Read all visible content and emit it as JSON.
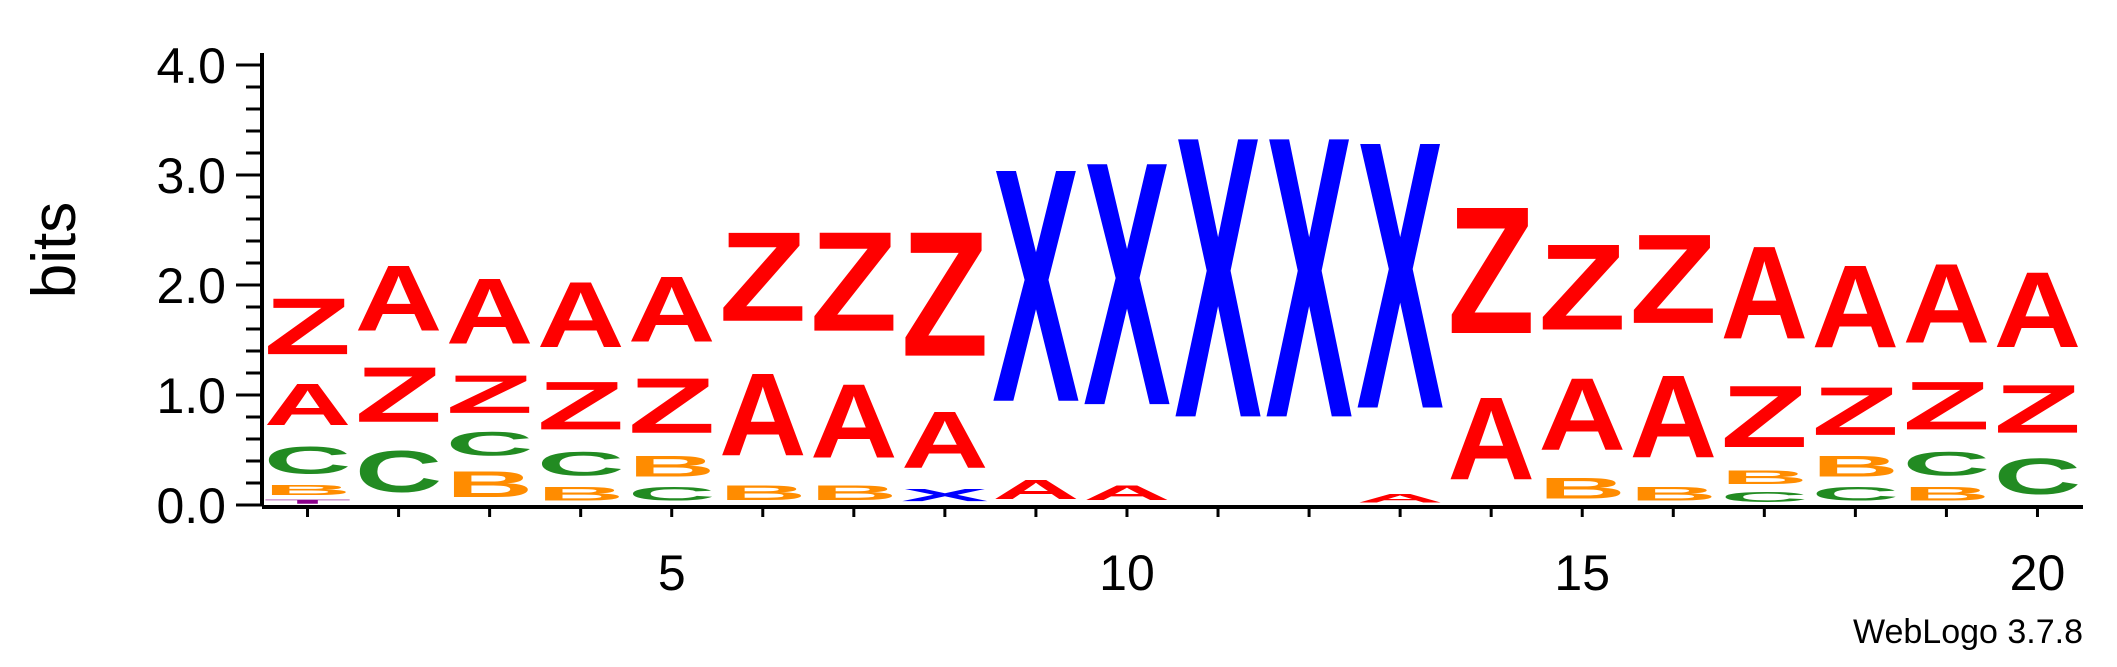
{
  "chart_data": {
    "type": "sequence-logo",
    "ylabel": "bits",
    "ylim": [
      0,
      4.0
    ],
    "y_ticks": [
      0.0,
      1.0,
      2.0,
      3.0,
      4.0
    ],
    "y_tick_labels": [
      "0.0",
      "1.0",
      "2.0",
      "3.0",
      "4.0"
    ],
    "x_ticks": [
      5,
      10,
      15,
      20
    ],
    "x_tick_labels": [
      "5",
      "10",
      "15",
      "20"
    ],
    "x_range": [
      0.5,
      20.5
    ],
    "footer": "WebLogo 3.7.8",
    "colors": {
      "A": "#ff0000",
      "Z": "#ff0000",
      "X": "#0000ff",
      "C": "#228b22",
      "B": "#ff8c00",
      "T": "#8b008b"
    },
    "positions": [
      {
        "pos": 1,
        "stack": [
          [
            "T",
            0.06
          ],
          [
            "B",
            0.15
          ],
          [
            "C",
            0.4
          ],
          [
            "A",
            0.6
          ],
          [
            "Z",
            0.82
          ]
        ]
      },
      {
        "pos": 2,
        "stack": [
          [
            "C",
            0.6
          ],
          [
            "Z",
            0.8
          ],
          [
            "A",
            0.95
          ]
        ]
      },
      {
        "pos": 3,
        "stack": [
          [
            "B",
            0.38
          ],
          [
            "C",
            0.35
          ],
          [
            "Z",
            0.55
          ],
          [
            "A",
            0.95
          ]
        ]
      },
      {
        "pos": 4,
        "stack": [
          [
            "B",
            0.2
          ],
          [
            "C",
            0.35
          ],
          [
            "Z",
            0.7
          ],
          [
            "A",
            0.95
          ]
        ]
      },
      {
        "pos": 5,
        "stack": [
          [
            "C",
            0.2
          ],
          [
            "B",
            0.3
          ],
          [
            "Z",
            0.8
          ],
          [
            "A",
            0.95
          ]
        ]
      },
      {
        "pos": 6,
        "stack": [
          [
            "B",
            0.22
          ],
          [
            "A",
            1.2
          ],
          [
            "Z",
            1.3
          ]
        ]
      },
      {
        "pos": 7,
        "stack": [
          [
            "B",
            0.22
          ],
          [
            "A",
            1.08
          ],
          [
            "Z",
            1.45
          ]
        ]
      },
      {
        "pos": 8,
        "stack": [
          [
            "X",
            0.18
          ],
          [
            "A",
            0.82
          ],
          [
            "Z",
            1.82
          ]
        ]
      },
      {
        "pos": 9,
        "stack": [
          [
            "A",
            0.28
          ],
          [
            "X",
            3.4
          ]
        ]
      },
      {
        "pos": 10,
        "stack": [
          [
            "A",
            0.22
          ],
          [
            "X",
            3.55
          ]
        ]
      },
      {
        "pos": 11,
        "stack": [
          [
            "X",
            4.1
          ]
        ]
      },
      {
        "pos": 12,
        "stack": [
          [
            "X",
            4.1
          ]
        ]
      },
      {
        "pos": 13,
        "stack": [
          [
            "A",
            0.12
          ],
          [
            "X",
            3.9
          ]
        ]
      },
      {
        "pos": 14,
        "stack": [
          [
            "A",
            1.2
          ],
          [
            "Z",
            1.85
          ]
        ]
      },
      {
        "pos": 15,
        "stack": [
          [
            "B",
            0.3
          ],
          [
            "A",
            1.05
          ],
          [
            "Z",
            1.25
          ]
        ]
      },
      {
        "pos": 16,
        "stack": [
          [
            "B",
            0.2
          ],
          [
            "A",
            1.2
          ],
          [
            "Z",
            1.3
          ]
        ]
      },
      {
        "pos": 17,
        "stack": [
          [
            "C",
            0.15
          ],
          [
            "B",
            0.2
          ],
          [
            "Z",
            0.9
          ],
          [
            "A",
            1.35
          ]
        ]
      },
      {
        "pos": 18,
        "stack": [
          [
            "C",
            0.2
          ],
          [
            "B",
            0.3
          ],
          [
            "Z",
            0.7
          ],
          [
            "A",
            1.2
          ]
        ]
      },
      {
        "pos": 19,
        "stack": [
          [
            "B",
            0.2
          ],
          [
            "C",
            0.35
          ],
          [
            "Z",
            0.7
          ],
          [
            "A",
            1.15
          ]
        ]
      },
      {
        "pos": 20,
        "stack": [
          [
            "C",
            0.52
          ],
          [
            "Z",
            0.7
          ],
          [
            "A",
            1.1
          ]
        ]
      }
    ]
  }
}
